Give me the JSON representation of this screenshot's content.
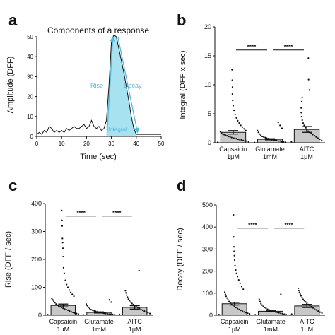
{
  "colors": {
    "axis": "#111111",
    "area_fill": "#a6e2ef",
    "arrow": "#5bb6d8",
    "bar_fill": "#c8c8c8",
    "points": "#111111"
  },
  "chart_data": [
    {
      "panel": "a",
      "type": "line",
      "title": "Components of a response",
      "xlabel": "Time (sec)",
      "ylabel": "Amplitude (DFF)",
      "xlim": [
        0,
        50
      ],
      "ylim": [
        0,
        50
      ],
      "xticks": [
        "0",
        "10",
        "20",
        "30",
        "40",
        "50"
      ],
      "yticks": [
        "0",
        "10",
        "20",
        "30",
        "40",
        "50"
      ],
      "annotations": {
        "rise": "Rise",
        "decay": "Decay",
        "integral": "Integral"
      },
      "x": [
        0,
        1,
        2,
        3,
        4,
        5,
        6,
        7,
        8,
        9,
        10,
        11,
        12,
        13,
        14,
        15,
        16,
        17,
        18,
        19,
        20,
        21,
        22,
        23,
        24,
        25,
        26,
        27,
        28,
        29,
        30,
        31,
        32,
        33,
        34,
        35,
        36,
        37,
        38,
        39,
        40,
        41,
        42,
        43,
        44,
        45,
        46,
        47,
        48,
        49,
        50
      ],
      "y": [
        1,
        2,
        1,
        3,
        2,
        5,
        4,
        2,
        3,
        2,
        3,
        2,
        4,
        3,
        4,
        5,
        4,
        4,
        5,
        6,
        4,
        5,
        8,
        5,
        4,
        5,
        3,
        4,
        8,
        25,
        47,
        51,
        50,
        44,
        38,
        32,
        25,
        18,
        10,
        4,
        1,
        1,
        1,
        1,
        1,
        1,
        1,
        1,
        1,
        1,
        1
      ]
    },
    {
      "panel": "b",
      "type": "bar",
      "ylabel": "Integral (DFF x sec)",
      "ylim": [
        0,
        20
      ],
      "yticks": [
        "0",
        "5",
        "10",
        "15",
        "20"
      ],
      "categories": [
        "Capsaicin 1μM",
        "Glutamate 1mM",
        "AITC 1μM"
      ],
      "category_lines": [
        [
          "Capsaicin",
          "1μM"
        ],
        [
          "Glutamate",
          "1mM"
        ],
        [
          "AITC",
          "1μM"
        ]
      ],
      "values": [
        1.8,
        0.6,
        2.3
      ],
      "errors": [
        0.3,
        0.1,
        0.5
      ],
      "points": [
        [
          0.1,
          0.2,
          0.3,
          0.3,
          0.4,
          0.5,
          0.5,
          0.6,
          0.7,
          0.8,
          0.8,
          0.9,
          1.0,
          1.1,
          1.2,
          1.3,
          1.4,
          1.5,
          1.7,
          1.9,
          2.1,
          2.4,
          2.7,
          3.0,
          3.4,
          3.8,
          4.3,
          4.9,
          5.6,
          6.4,
          7.3,
          8.4,
          9.6,
          10.8,
          12.6
        ],
        [
          0.05,
          0.1,
          0.2,
          0.2,
          0.3,
          0.3,
          0.4,
          0.4,
          0.5,
          0.5,
          0.6,
          0.7,
          0.8,
          0.9,
          1.0,
          1.1,
          1.3,
          1.5,
          1.8,
          2.1,
          2.5,
          3.0,
          3.5
        ],
        [
          0.2,
          0.4,
          0.6,
          0.8,
          1.0,
          1.2,
          1.4,
          1.6,
          1.8,
          2.0,
          2.3,
          2.6,
          3.0,
          3.4,
          3.9,
          4.5,
          5.2,
          6.0,
          7.1,
          7.8,
          9.1,
          10.9,
          14.6
        ]
      ],
      "significance": [
        {
          "from": 0,
          "to": 1,
          "label": "****"
        },
        {
          "from": 1,
          "to": 2,
          "label": "****"
        }
      ],
      "significance_y": 16
    },
    {
      "panel": "c",
      "type": "bar",
      "ylabel": "Rise (DFF / sec)",
      "ylim": [
        0,
        400
      ],
      "yticks": [
        "0",
        "100",
        "200",
        "300",
        "400"
      ],
      "categories": [
        "Capsaicin 1μM",
        "Glutamate 1mM",
        "AITC 1μM"
      ],
      "category_lines": [
        [
          "Capsaicin",
          "1μM"
        ],
        [
          "Glutamate",
          "1mM"
        ],
        [
          "AITC",
          "1μM"
        ]
      ],
      "values": [
        35,
        10,
        28
      ],
      "errors": [
        5,
        2,
        6
      ],
      "points": [
        [
          2,
          4,
          6,
          8,
          10,
          12,
          15,
          18,
          20,
          22,
          25,
          28,
          30,
          33,
          36,
          40,
          45,
          50,
          55,
          60,
          68,
          75,
          82,
          90,
          100,
          110,
          125,
          150,
          170,
          210,
          240,
          260,
          275,
          320,
          340,
          375
        ],
        [
          1,
          2,
          3,
          3,
          4,
          5,
          6,
          7,
          8,
          9,
          10,
          12,
          14,
          16,
          18,
          20,
          24,
          28,
          34,
          40,
          47,
          55
        ],
        [
          3,
          6,
          9,
          12,
          15,
          18,
          21,
          24,
          27,
          30,
          34,
          38,
          42,
          47,
          52,
          58,
          65,
          72,
          80,
          88,
          160
        ]
      ],
      "significance": [
        {
          "from": 0,
          "to": 1,
          "label": "****"
        },
        {
          "from": 1,
          "to": 2,
          "label": "****"
        }
      ],
      "significance_y": 355
    },
    {
      "panel": "d",
      "type": "bar",
      "ylabel": "Decay (DFF / sec)",
      "ylim": [
        0,
        500
      ],
      "yticks": [
        "0",
        "100",
        "200",
        "300",
        "400",
        "500"
      ],
      "categories": [
        "Capsaicin 1μM",
        "Glutamate 1mM",
        "AITC 1μM"
      ],
      "category_lines": [
        [
          "Capsaicin",
          "1μM"
        ],
        [
          "Glutamate",
          "1mM"
        ],
        [
          "AITC",
          "1μM"
        ]
      ],
      "values": [
        52,
        18,
        42
      ],
      "errors": [
        6,
        2,
        7
      ],
      "points": [
        [
          3,
          6,
          9,
          12,
          15,
          18,
          22,
          26,
          30,
          35,
          40,
          45,
          50,
          56,
          62,
          70,
          78,
          86,
          95,
          105,
          118,
          130,
          145,
          160,
          175,
          190,
          205,
          225,
          250,
          270,
          290,
          310,
          355,
          455
        ],
        [
          2,
          4,
          5,
          7,
          9,
          11,
          13,
          15,
          17,
          19,
          21,
          24,
          27,
          31,
          35,
          40,
          46,
          53,
          62,
          72,
          95
        ],
        [
          5,
          10,
          14,
          19,
          24,
          28,
          33,
          38,
          43,
          48,
          54,
          60,
          66,
          72,
          80,
          88,
          96,
          104,
          112,
          122
        ]
      ],
      "significance": [
        {
          "from": 0,
          "to": 1,
          "label": "****"
        },
        {
          "from": 1,
          "to": 2,
          "label": "****"
        }
      ],
      "significance_y": 395
    }
  ],
  "panel_letters": [
    "a",
    "b",
    "c",
    "d"
  ]
}
